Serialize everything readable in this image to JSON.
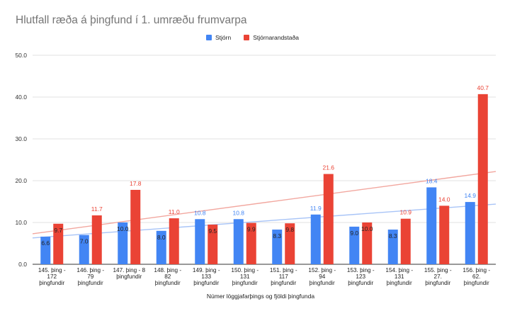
{
  "chart_data": {
    "type": "bar",
    "title": "Hlutfall ræða á þingfund í 1. umræðu frumvarpa",
    "xlabel": "Númer löggjafarþings og fjöldi þingfunda",
    "ylabel": "",
    "ylim": [
      0,
      50
    ],
    "yticks": [
      "0.0",
      "10.0",
      "20.0",
      "30.0",
      "40.0",
      "50.0"
    ],
    "grid": true,
    "legend_position": "top-center",
    "categories": [
      [
        "145. þing -",
        "172",
        "þingfundir"
      ],
      [
        "146. þing -",
        "79",
        "þingfundir"
      ],
      [
        "147. þing - 8",
        "þingfundir"
      ],
      [
        "148. þing -",
        "82",
        "þingfundir"
      ],
      [
        "149. þing -",
        "133",
        "þingfundir"
      ],
      [
        "150. þing -",
        "131",
        "þingfundir"
      ],
      [
        "151. þing -",
        "117",
        "þingfundir"
      ],
      [
        "152. þing -",
        "94",
        "þingfundir"
      ],
      [
        "153. þing -",
        "123",
        "þingfundir"
      ],
      [
        "154. þing -",
        "131",
        "þingfundir"
      ],
      [
        "155. þing -",
        "27.",
        "þingfundir"
      ],
      [
        "156. þing -",
        "62.",
        "þingfundir"
      ]
    ],
    "series": [
      {
        "name": "Stjórn",
        "color": "#4285F4",
        "values": [
          6.6,
          7.0,
          10.0,
          8.0,
          10.8,
          10.8,
          8.3,
          11.9,
          9.0,
          8.3,
          18.4,
          14.9
        ],
        "labels": [
          "6.6",
          "7.0",
          "10.0",
          "8.0",
          "10.8",
          "10.8",
          "8.3",
          "11.9",
          "9.0",
          "8.3",
          "18.4",
          "14.9"
        ],
        "trendline": [
          6.3,
          14.4
        ]
      },
      {
        "name": "Stjórnarandstaða",
        "color": "#EA4335",
        "values": [
          9.7,
          11.7,
          17.8,
          11.0,
          9.5,
          9.9,
          9.8,
          21.6,
          10.0,
          10.9,
          14.0,
          40.7
        ],
        "labels": [
          "9.7",
          "11.7",
          "17.8",
          "11.0",
          "9.5",
          "9.9",
          "9.8",
          "21.6",
          "10.0",
          "10.9",
          "14.0",
          "40.7"
        ],
        "trendline": [
          7.3,
          22.2
        ]
      }
    ]
  }
}
